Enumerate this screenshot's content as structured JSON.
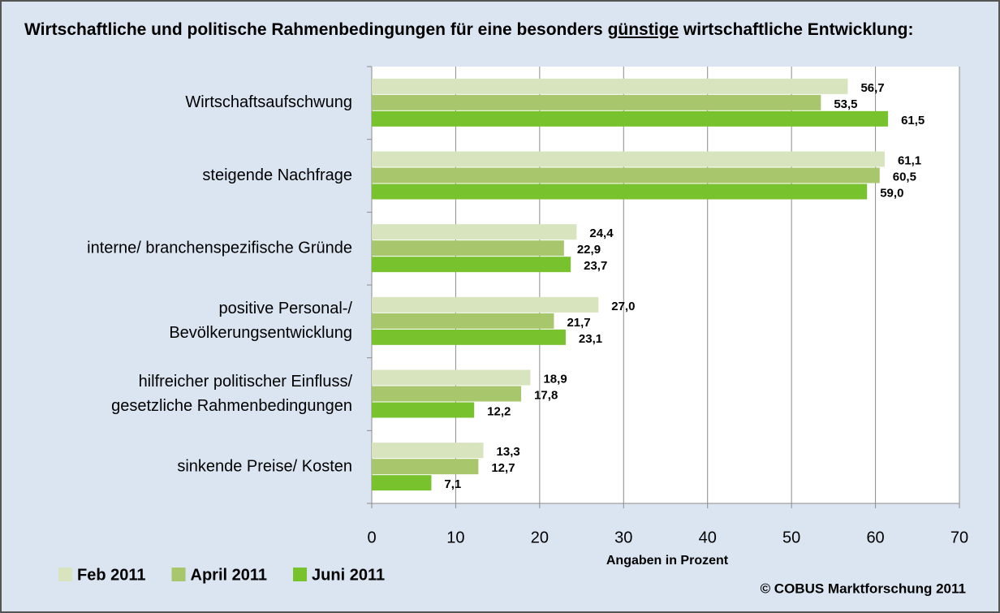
{
  "chart_data": {
    "type": "bar",
    "orientation": "horizontal",
    "title": [
      "Wirtschaftliche und politische Rahmenbedingungen für eine besonders",
      "günstige",
      "wirtschaftliche Entwicklung:"
    ],
    "categories": [
      [
        "Wirtschaftsaufschwung"
      ],
      [
        "steigende Nachfrage"
      ],
      [
        "interne/ branchenspezifische Gründe"
      ],
      [
        "positive Personal-/",
        "Bevölkerungsentwicklung"
      ],
      [
        "hilfreicher politischer Einfluss/",
        "gesetzliche Rahmenbedingungen"
      ],
      [
        "sinkende Preise/ Kosten"
      ]
    ],
    "series": [
      {
        "name": "Feb 2011",
        "color": "#d7e4bd",
        "values": [
          56.7,
          61.1,
          24.4,
          27.0,
          18.9,
          13.3
        ],
        "value_labels": [
          "56,7",
          "61,1",
          "24,4",
          "27,0",
          "18,9",
          "13,3"
        ]
      },
      {
        "name": "April 2011",
        "color": "#a8c66c",
        "values": [
          53.5,
          60.5,
          22.9,
          21.7,
          17.8,
          12.7
        ],
        "value_labels": [
          "53,5",
          "60,5",
          "22,9",
          "21,7",
          "17,8",
          "12,7"
        ]
      },
      {
        "name": "Juni 2011",
        "color": "#78c22e",
        "values": [
          61.5,
          59.0,
          23.7,
          23.1,
          12.2,
          7.1
        ],
        "value_labels": [
          "61,5",
          "59,0",
          "23,7",
          "23,1",
          "12,2",
          "7,1"
        ]
      }
    ],
    "xlabel": "Angaben in Prozent",
    "xlim": [
      0,
      70
    ],
    "xticks": [
      0,
      10,
      20,
      30,
      40,
      50,
      60,
      70
    ],
    "grid": true,
    "legend": "bottom-left",
    "source": "© COBUS Marktforschung 2011"
  }
}
